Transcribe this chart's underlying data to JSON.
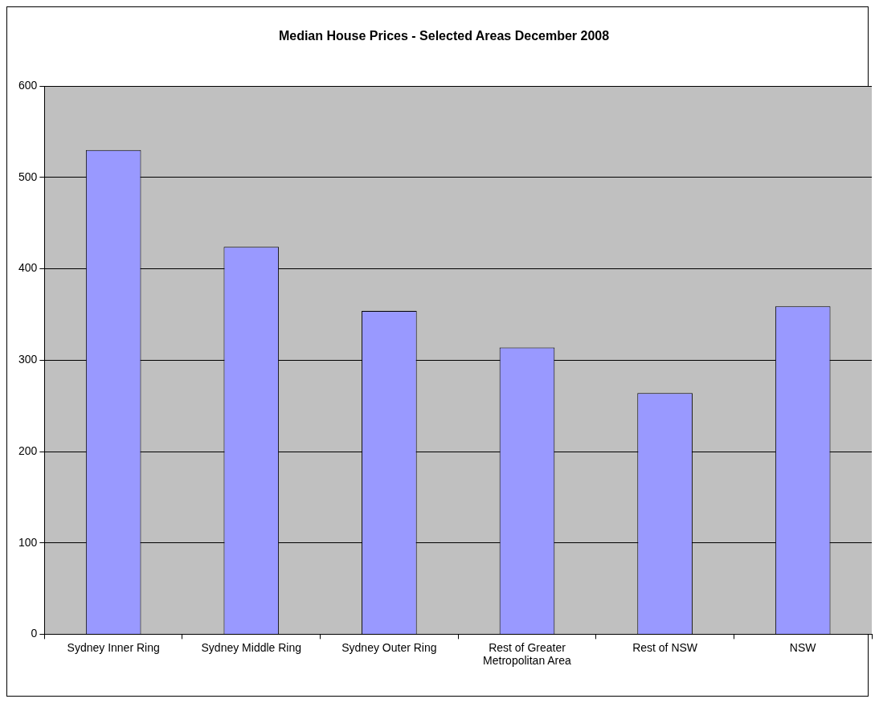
{
  "chart_data": {
    "type": "bar",
    "title": "Median House Prices - Selected Areas December 2008",
    "categories": [
      "Sydney Inner Ring",
      "Sydney Middle Ring",
      "Sydney Outer Ring",
      "Rest of Greater Metropolitan Area",
      "Rest of NSW",
      "NSW"
    ],
    "values": [
      530,
      424,
      354,
      314,
      264,
      359
    ],
    "color": "#9999ff",
    "ylim": [
      0,
      600
    ],
    "yticks": [
      0,
      100,
      200,
      300,
      400,
      500,
      600
    ],
    "grid": "y"
  }
}
